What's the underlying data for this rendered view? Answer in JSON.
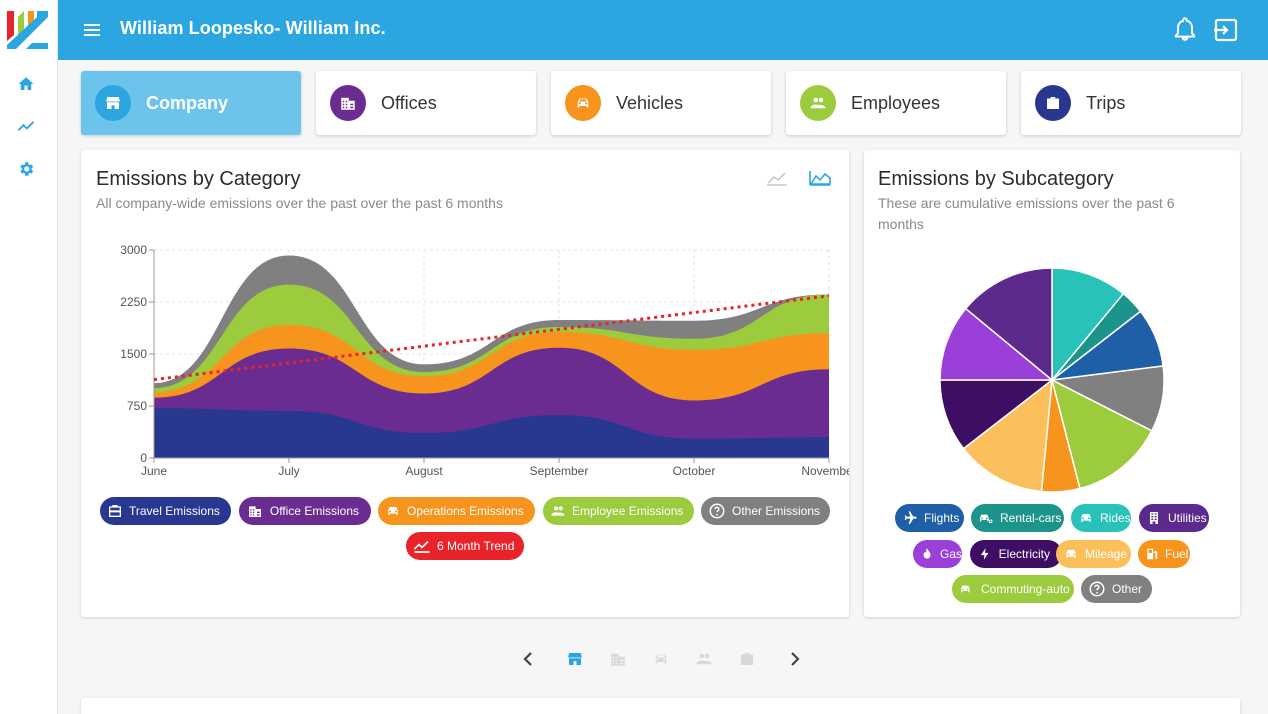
{
  "header": {
    "title": "William Loopesko- William Inc."
  },
  "sidebar": {
    "items": [
      {
        "icon": "home-icon"
      },
      {
        "icon": "trend-icon"
      },
      {
        "icon": "gear-icon"
      }
    ]
  },
  "categories": [
    {
      "label": "Company",
      "icon": "store-icon",
      "color": "#2ba6e1",
      "active": true
    },
    {
      "label": "Offices",
      "icon": "building-icon",
      "color": "#6a2c91",
      "active": false
    },
    {
      "label": "Vehicles",
      "icon": "car-icon",
      "color": "#f7941d",
      "active": false
    },
    {
      "label": "Employees",
      "icon": "people-icon",
      "color": "#9ccc3d",
      "active": false
    },
    {
      "label": "Trips",
      "icon": "briefcase-icon",
      "color": "#283891",
      "active": false
    }
  ],
  "category_chart": {
    "title": "Emissions by Category",
    "subtitle": "All company-wide emissions over the past over the past 6 months",
    "legend": [
      {
        "label": "Travel Emissions",
        "color": "#283891",
        "icon": "briefcase-icon"
      },
      {
        "label": "Office Emissions",
        "color": "#6a2c91",
        "icon": "building-icon"
      },
      {
        "label": "Operations Emissions",
        "color": "#f7941d",
        "icon": "car-icon"
      },
      {
        "label": "Employee Emissions",
        "color": "#9ccc3d",
        "icon": "people-icon"
      },
      {
        "label": "Other Emissions",
        "color": "#808080",
        "icon": "help-icon"
      },
      {
        "label": "6 Month Trend",
        "color": "#e8232a",
        "icon": "trend-icon"
      }
    ]
  },
  "subcategory_chart": {
    "title": "Emissions by Subcategory",
    "subtitle": "These are cumulative emissions over the past 6 months",
    "legend": [
      {
        "label": "Flights",
        "color": "#1f5fa8",
        "icon": "plane-icon"
      },
      {
        "label": "Rental-cars",
        "color": "#1c948c",
        "icon": "car-key-icon"
      },
      {
        "label": "Rides",
        "color": "#29c2b8",
        "icon": "car-icon"
      },
      {
        "label": "Utilities",
        "color": "#5b2a8c",
        "icon": "building-icon"
      },
      {
        "label": "Gas",
        "color": "#9b3fd9",
        "icon": "flame-icon"
      },
      {
        "label": "Electricity",
        "color": "#3d0e63",
        "icon": "bolt-icon"
      },
      {
        "label": "Mileage",
        "color": "#fbbf5c",
        "icon": "car-icon"
      },
      {
        "label": "Fuel",
        "color": "#f7941d",
        "icon": "fuel-icon"
      },
      {
        "label": "Commuting-auto",
        "color": "#9ccc3d",
        "icon": "car-icon"
      },
      {
        "label": "Other",
        "color": "#808080",
        "icon": "help-icon"
      }
    ]
  },
  "chart_data": [
    {
      "type": "area",
      "stacked": true,
      "x": [
        "June",
        "July",
        "August",
        "September",
        "October",
        "November"
      ],
      "ylim": [
        0,
        3000
      ],
      "yticks": [
        "3000",
        "2250",
        "1500",
        "750",
        "0"
      ],
      "grid": true,
      "series": [
        {
          "name": "Travel Emissions",
          "color": "#283891",
          "values": [
            720,
            680,
            360,
            620,
            280,
            300
          ]
        },
        {
          "name": "Office Emissions",
          "color": "#6a2c91",
          "values": [
            150,
            900,
            570,
            970,
            550,
            980
          ]
        },
        {
          "name": "Operations Emissions",
          "color": "#f7941d",
          "values": [
            80,
            340,
            250,
            230,
            730,
            520
          ]
        },
        {
          "name": "Employee Emissions",
          "color": "#9ccc3d",
          "values": [
            60,
            580,
            60,
            70,
            160,
            560
          ]
        },
        {
          "name": "Other Emissions",
          "color": "#808080",
          "values": [
            70,
            420,
            110,
            100,
            260,
            0
          ]
        }
      ],
      "trend": {
        "name": "6 Month Trend",
        "color": "#e8232a",
        "values": [
          1130,
          2340
        ]
      }
    },
    {
      "type": "pie",
      "slices": [
        {
          "name": "Rides",
          "color": "#29c2b8",
          "value": 11
        },
        {
          "name": "Rental-cars",
          "color": "#1c948c",
          "value": 3.5
        },
        {
          "name": "Flights",
          "color": "#1f5fa8",
          "value": 8.5
        },
        {
          "name": "Other",
          "color": "#808080",
          "value": 9.5
        },
        {
          "name": "Commuting-auto",
          "color": "#9ccc3d",
          "value": 13.5
        },
        {
          "name": "Fuel",
          "color": "#f7941d",
          "value": 5.5
        },
        {
          "name": "Mileage",
          "color": "#fbbf5c",
          "value": 13
        },
        {
          "name": "Electricity",
          "color": "#3d0e63",
          "value": 10.5
        },
        {
          "name": "Gas",
          "color": "#9b3fd9",
          "value": 11
        },
        {
          "name": "Utilities",
          "color": "#5b2a8c",
          "value": 14
        }
      ]
    }
  ],
  "pager": {
    "items": [
      "chevron-left-icon",
      "store-icon",
      "building-icon",
      "car-icon",
      "people-icon",
      "briefcase-icon",
      "chevron-right-icon"
    ],
    "active_index": 1,
    "accent": "#2ba6e1"
  }
}
